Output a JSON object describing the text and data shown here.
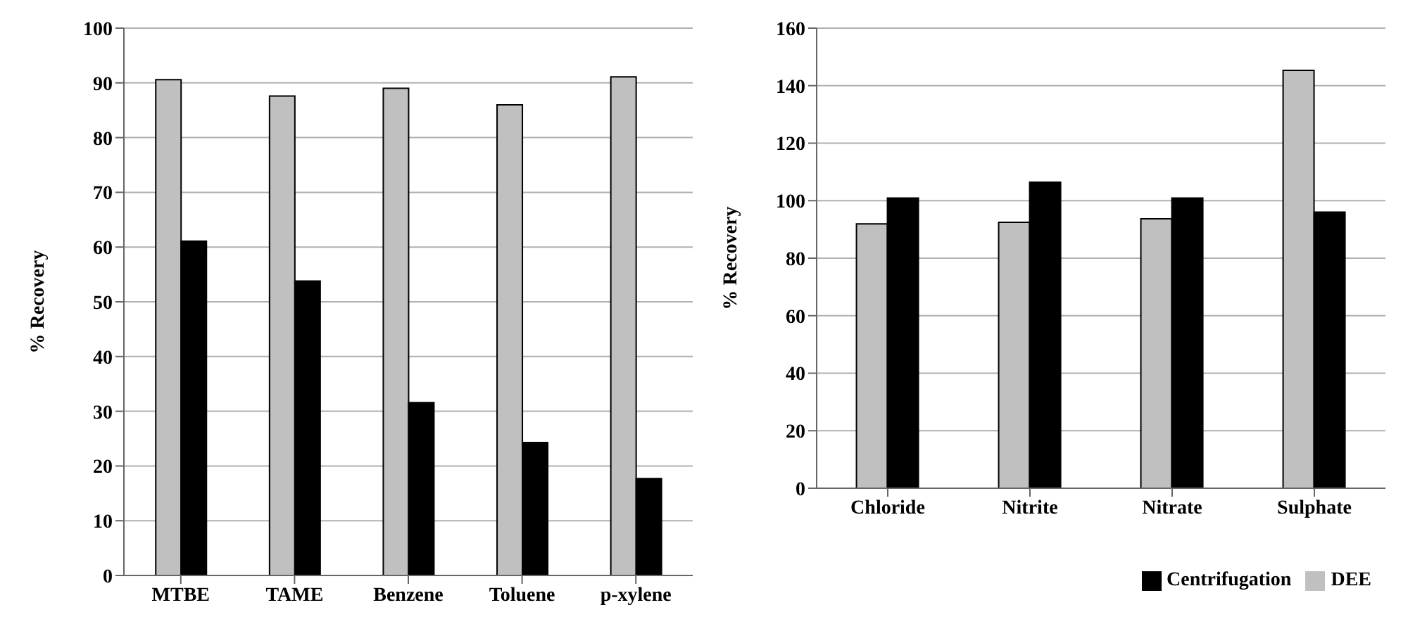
{
  "chart_data": [
    {
      "type": "bar",
      "ylabel": "% Recovery",
      "categories": [
        "MTBE",
        "TAME",
        "Benzene",
        "Toluene",
        "p-xylene"
      ],
      "series": [
        {
          "color": "#c0c0c0",
          "values": [
            90.6,
            87.6,
            89.0,
            86.0,
            91.1
          ]
        },
        {
          "color": "#000000",
          "values": [
            61.1,
            53.8,
            31.6,
            24.3,
            17.7
          ]
        }
      ],
      "ylim": [
        0,
        100
      ],
      "yticks": [
        0,
        10,
        20,
        30,
        40,
        50,
        60,
        70,
        80,
        90,
        100
      ],
      "grid": "y",
      "legend": false
    },
    {
      "type": "bar",
      "ylabel": "% Recovery",
      "categories": [
        "Chloride",
        "Nitrite",
        "Nitrate",
        "Sulphate"
      ],
      "series": [
        {
          "name": "DEE",
          "color": "#c0c0c0",
          "values": [
            91.9,
            92.5,
            93.7,
            145.3
          ]
        },
        {
          "name": "Centrifugation",
          "color": "#000000",
          "values": [
            100.9,
            106.4,
            100.9,
            96.0
          ]
        }
      ],
      "ylim": [
        0,
        160
      ],
      "yticks": [
        0,
        20,
        40,
        60,
        80,
        100,
        120,
        140,
        160
      ],
      "grid": "y",
      "legend": "bottom right"
    }
  ]
}
